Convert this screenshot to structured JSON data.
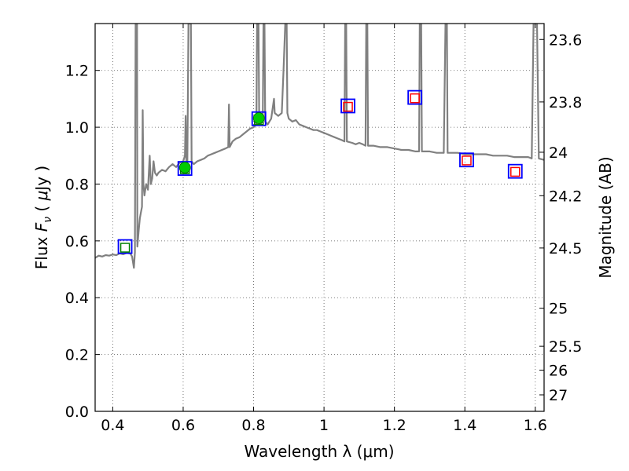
{
  "chart_data": {
    "type": "line",
    "title": "",
    "xlabel": "Wavelength  λ (μm)",
    "ylabel": "Flux  F_ν  ( μJy )",
    "ylabel_parts": {
      "lead": "Flux  ",
      "symbol": "F",
      "subscript": "ν",
      "tail": "  ( ",
      "unit_symbol": "μ",
      "unit": "Jy )"
    },
    "y2label": "Magnitude (AB)",
    "xlim": [
      0.35,
      1.625
    ],
    "ylim": [
      0.0,
      1.365
    ],
    "grid": true,
    "x_ticks": [
      0.4,
      0.6,
      0.8,
      1.0,
      1.2,
      1.4,
      1.6
    ],
    "x_tick_labels": [
      "0.4",
      "0.6",
      "0.8",
      "1",
      "1.2",
      "1.4",
      "1.6"
    ],
    "y_ticks": [
      0.0,
      0.2,
      0.4,
      0.6,
      0.8,
      1.0,
      1.2
    ],
    "y_tick_labels": [
      "0.0",
      "0.2",
      "0.4",
      "0.6",
      "0.8",
      "1.0",
      "1.2"
    ],
    "y2_ticks": [
      {
        "label": "23.6",
        "flux": 1.309
      },
      {
        "label": "23.8",
        "flux": 1.089
      },
      {
        "label": "24",
        "flux": 0.912
      },
      {
        "label": "24.2",
        "flux": 0.759
      },
      {
        "label": "24.5",
        "flux": 0.575
      },
      {
        "label": "25",
        "flux": 0.363
      },
      {
        "label": "25.5",
        "flux": 0.229
      },
      {
        "label": "26",
        "flux": 0.145
      },
      {
        "label": "27",
        "flux": 0.058
      }
    ],
    "colors": {
      "model": "#808080",
      "obs_box": "#0000ff",
      "model_box_red": "#ff0000",
      "model_box_green": "#008000",
      "detection": "#00cc00",
      "grid": "#555555"
    },
    "series": [
      {
        "name": "model spectrum",
        "style": "line",
        "points": [
          [
            0.35,
            0.54
          ],
          [
            0.36,
            0.548
          ],
          [
            0.37,
            0.545
          ],
          [
            0.38,
            0.55
          ],
          [
            0.39,
            0.548
          ],
          [
            0.4,
            0.552
          ],
          [
            0.41,
            0.55
          ],
          [
            0.42,
            0.556
          ],
          [
            0.43,
            0.553
          ],
          [
            0.44,
            0.558
          ],
          [
            0.45,
            0.555
          ],
          [
            0.455,
            0.545
          ],
          [
            0.46,
            0.505
          ],
          [
            0.463,
            0.56
          ],
          [
            0.465,
            1.365
          ],
          [
            0.469,
            1.365
          ],
          [
            0.47,
            0.58
          ],
          [
            0.474,
            0.64
          ],
          [
            0.477,
            0.68
          ],
          [
            0.48,
            0.7
          ],
          [
            0.483,
            0.72
          ],
          [
            0.485,
            1.06
          ],
          [
            0.487,
            0.8
          ],
          [
            0.49,
            0.76
          ],
          [
            0.495,
            0.8
          ],
          [
            0.5,
            0.78
          ],
          [
            0.505,
            0.9
          ],
          [
            0.508,
            0.8
          ],
          [
            0.512,
            0.82
          ],
          [
            0.516,
            0.88
          ],
          [
            0.52,
            0.84
          ],
          [
            0.525,
            0.83
          ],
          [
            0.53,
            0.84
          ],
          [
            0.54,
            0.85
          ],
          [
            0.55,
            0.845
          ],
          [
            0.56,
            0.86
          ],
          [
            0.57,
            0.87
          ],
          [
            0.58,
            0.86
          ],
          [
            0.59,
            0.875
          ],
          [
            0.6,
            0.88
          ],
          [
            0.605,
            0.9
          ],
          [
            0.607,
            1.04
          ],
          [
            0.609,
            0.88
          ],
          [
            0.612,
            0.88
          ],
          [
            0.615,
            1.365
          ],
          [
            0.622,
            1.365
          ],
          [
            0.624,
            0.88
          ],
          [
            0.63,
            0.87
          ],
          [
            0.64,
            0.88
          ],
          [
            0.65,
            0.885
          ],
          [
            0.66,
            0.89
          ],
          [
            0.67,
            0.9
          ],
          [
            0.68,
            0.905
          ],
          [
            0.69,
            0.91
          ],
          [
            0.7,
            0.915
          ],
          [
            0.71,
            0.92
          ],
          [
            0.72,
            0.925
          ],
          [
            0.728,
            0.93
          ],
          [
            0.73,
            1.08
          ],
          [
            0.732,
            0.93
          ],
          [
            0.74,
            0.95
          ],
          [
            0.75,
            0.96
          ],
          [
            0.76,
            0.965
          ],
          [
            0.77,
            0.975
          ],
          [
            0.78,
            0.985
          ],
          [
            0.79,
            0.995
          ],
          [
            0.8,
            1.0
          ],
          [
            0.808,
            1.01
          ],
          [
            0.81,
            1.365
          ],
          [
            0.814,
            1.365
          ],
          [
            0.816,
            1.01
          ],
          [
            0.82,
            1.01
          ],
          [
            0.826,
            1.03
          ],
          [
            0.828,
            1.365
          ],
          [
            0.831,
            1.365
          ],
          [
            0.833,
            1.02
          ],
          [
            0.84,
            1.01
          ],
          [
            0.85,
            1.03
          ],
          [
            0.858,
            1.1
          ],
          [
            0.86,
            1.05
          ],
          [
            0.87,
            1.04
          ],
          [
            0.88,
            1.05
          ],
          [
            0.885,
            1.2
          ],
          [
            0.89,
            1.365
          ],
          [
            0.894,
            1.365
          ],
          [
            0.896,
            1.05
          ],
          [
            0.9,
            1.03
          ],
          [
            0.91,
            1.02
          ],
          [
            0.92,
            1.025
          ],
          [
            0.93,
            1.01
          ],
          [
            0.94,
            1.005
          ],
          [
            0.95,
            1.0
          ],
          [
            0.96,
            0.995
          ],
          [
            0.97,
            0.99
          ],
          [
            0.98,
            0.99
          ],
          [
            0.99,
            0.985
          ],
          [
            1.0,
            0.98
          ],
          [
            1.01,
            0.975
          ],
          [
            1.02,
            0.97
          ],
          [
            1.03,
            0.965
          ],
          [
            1.04,
            0.96
          ],
          [
            1.05,
            0.955
          ],
          [
            1.058,
            0.95
          ],
          [
            1.06,
            1.365
          ],
          [
            1.063,
            1.365
          ],
          [
            1.065,
            0.95
          ],
          [
            1.08,
            0.945
          ],
          [
            1.09,
            0.94
          ],
          [
            1.1,
            0.945
          ],
          [
            1.11,
            0.94
          ],
          [
            1.118,
            0.935
          ],
          [
            1.12,
            1.365
          ],
          [
            1.123,
            1.365
          ],
          [
            1.125,
            0.935
          ],
          [
            1.14,
            0.935
          ],
          [
            1.16,
            0.93
          ],
          [
            1.18,
            0.93
          ],
          [
            1.2,
            0.925
          ],
          [
            1.22,
            0.92
          ],
          [
            1.24,
            0.92
          ],
          [
            1.26,
            0.915
          ],
          [
            1.27,
            0.915
          ],
          [
            1.272,
            1.365
          ],
          [
            1.276,
            1.365
          ],
          [
            1.278,
            0.915
          ],
          [
            1.3,
            0.915
          ],
          [
            1.32,
            0.91
          ],
          [
            1.34,
            0.91
          ],
          [
            1.345,
            1.365
          ],
          [
            1.349,
            1.365
          ],
          [
            1.351,
            0.91
          ],
          [
            1.36,
            0.91
          ],
          [
            1.38,
            0.91
          ],
          [
            1.4,
            0.905
          ],
          [
            1.42,
            0.905
          ],
          [
            1.44,
            0.905
          ],
          [
            1.46,
            0.905
          ],
          [
            1.48,
            0.9
          ],
          [
            1.5,
            0.9
          ],
          [
            1.52,
            0.9
          ],
          [
            1.54,
            0.895
          ],
          [
            1.56,
            0.895
          ],
          [
            1.58,
            0.895
          ],
          [
            1.59,
            0.89
          ],
          [
            1.595,
            1.365
          ],
          [
            1.605,
            1.365
          ],
          [
            1.61,
            0.89
          ],
          [
            1.625,
            0.885
          ]
        ]
      },
      {
        "name": "observed photometry",
        "style": "open-square",
        "points": [
          [
            0.435,
            0.58
          ],
          [
            0.605,
            0.855
          ],
          [
            0.815,
            1.03
          ],
          [
            1.068,
            1.075
          ],
          [
            1.258,
            1.105
          ],
          [
            1.405,
            0.885
          ],
          [
            1.543,
            0.845
          ]
        ]
      },
      {
        "name": "model photometry",
        "style": "open-square-small",
        "points": [
          [
            0.435,
            0.576,
            "green"
          ],
          [
            0.605,
            0.852,
            "green"
          ],
          [
            0.815,
            1.025,
            "green"
          ],
          [
            1.068,
            1.072,
            "red"
          ],
          [
            1.258,
            1.102,
            "red"
          ],
          [
            1.405,
            0.883,
            "red"
          ],
          [
            1.543,
            0.843,
            "red"
          ]
        ]
      },
      {
        "name": "detections",
        "style": "filled-circle",
        "points": [
          [
            0.605,
            0.858
          ],
          [
            0.815,
            1.032
          ]
        ]
      }
    ]
  }
}
